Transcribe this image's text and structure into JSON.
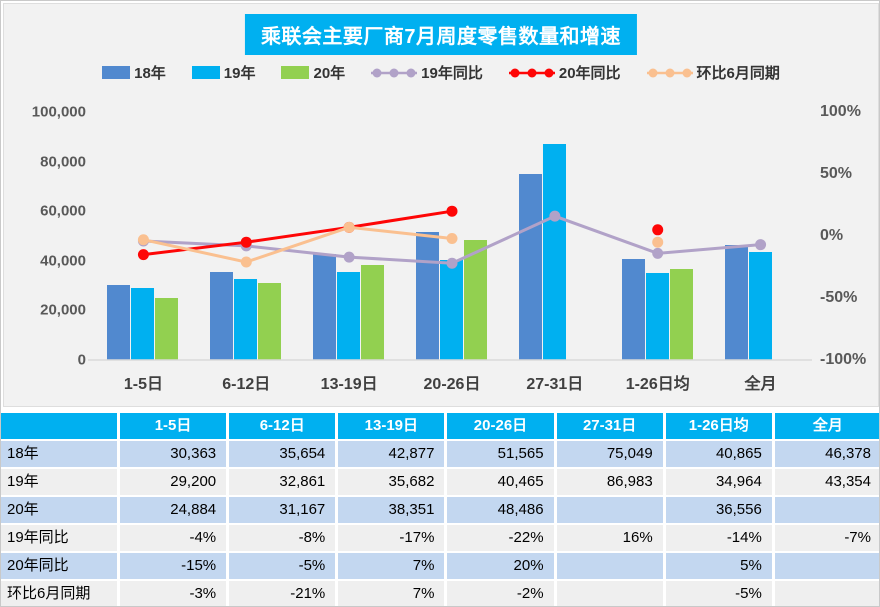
{
  "title": "乘联会主要厂商7月周度零售数量和增速",
  "colors": {
    "title_bg": "#00b0f0",
    "table_header_bg": "#00b0f0",
    "table_row_blue": "#c3d7f0",
    "table_row_gray": "#efefef",
    "chart_bg": "#f2f2f2",
    "baseline": "#d9d9d9"
  },
  "chart_data": {
    "type": "bar+line combo",
    "title": "乘联会主要厂商7月周度零售数量和增速",
    "categories": [
      "1-5日",
      "6-12日",
      "13-19日",
      "20-26日",
      "27-31日",
      "1-26日均",
      "全月"
    ],
    "bar_series": [
      {
        "name": "18年",
        "color": "#5189cf",
        "axis": "left",
        "values": [
          30363,
          35654,
          42877,
          51565,
          75049,
          40865,
          46378
        ]
      },
      {
        "name": "19年",
        "color": "#00b0f0",
        "axis": "left",
        "values": [
          29200,
          32861,
          35682,
          40465,
          86983,
          34964,
          43354
        ]
      },
      {
        "name": "20年",
        "color": "#92d050",
        "axis": "left",
        "values": [
          24884,
          31167,
          38351,
          48486,
          null,
          36556,
          null
        ]
      }
    ],
    "line_series": [
      {
        "name": "19年同比",
        "color": "#b1a2c8",
        "axis": "right",
        "values": [
          -4,
          -8,
          -17,
          -22,
          16,
          -14,
          -7
        ]
      },
      {
        "name": "20年同比",
        "color": "#fe0606",
        "axis": "right",
        "values": [
          -15,
          -5,
          7,
          20,
          null,
          5,
          null
        ]
      },
      {
        "name": "环比6月同期",
        "color": "#fac090",
        "axis": "right",
        "values": [
          -3,
          -21,
          7,
          -2,
          null,
          -5,
          null
        ]
      }
    ],
    "left_axis": {
      "min": 0,
      "max": 100000,
      "ticks": [
        0,
        20000,
        40000,
        60000,
        80000,
        100000
      ],
      "tick_labels": [
        "0",
        "20,000",
        "40,000",
        "60,000",
        "80,000",
        "100,000"
      ]
    },
    "right_axis": {
      "min": -100,
      "max": 100,
      "ticks": [
        -100,
        -50,
        0,
        50,
        100
      ],
      "tick_labels": [
        "-100%",
        "-50%",
        "0%",
        "50%",
        "100%"
      ]
    },
    "grid": "off",
    "legend_position": "top"
  },
  "table": {
    "header": [
      "",
      "1-5日",
      "6-12日",
      "13-19日",
      "20-26日",
      "27-31日",
      "1-26日均",
      "全月"
    ],
    "rows": [
      {
        "label": "18年",
        "values": [
          "30,363",
          "35,654",
          "42,877",
          "51,565",
          "75,049",
          "40,865",
          "46,378"
        ]
      },
      {
        "label": "19年",
        "values": [
          "29,200",
          "32,861",
          "35,682",
          "40,465",
          "86,983",
          "34,964",
          "43,354"
        ]
      },
      {
        "label": "20年",
        "values": [
          "24,884",
          "31,167",
          "38,351",
          "48,486",
          "",
          "36,556",
          ""
        ]
      },
      {
        "label": "19年同比",
        "values": [
          "-4%",
          "-8%",
          "-17%",
          "-22%",
          "16%",
          "-14%",
          "-7%"
        ]
      },
      {
        "label": "20年同比",
        "values": [
          "-15%",
          "-5%",
          "7%",
          "20%",
          "",
          "5%",
          ""
        ]
      },
      {
        "label": "环比6月同期",
        "values": [
          "-3%",
          "-21%",
          "7%",
          "-2%",
          "",
          "-5%",
          ""
        ]
      }
    ]
  }
}
